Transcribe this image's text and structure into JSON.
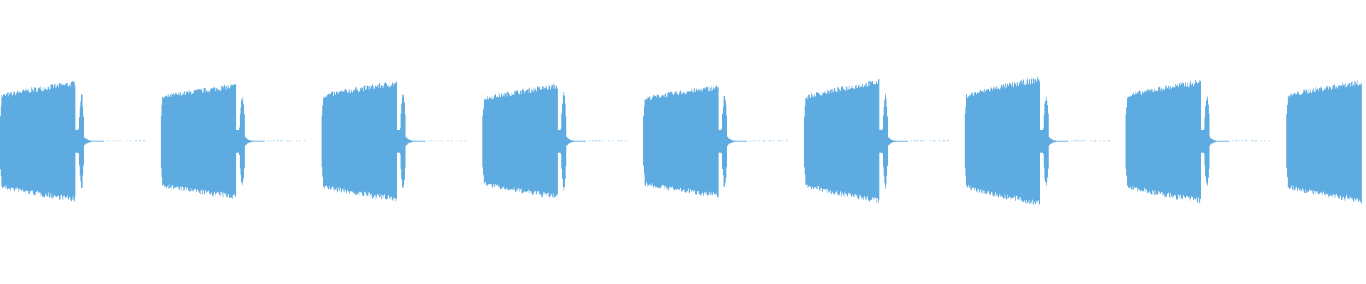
{
  "chart_data": {
    "type": "area",
    "title": "",
    "xlabel": "",
    "ylabel": "",
    "ylim": [
      -1,
      1
    ],
    "grid": false,
    "legend": "none",
    "waveform_color": "#5dabe1",
    "background_color": "#ffffff",
    "burst_count": 9,
    "bursts": [
      {
        "index": 1,
        "start_amplitude": 0.33,
        "peak_amplitude": 0.43,
        "has_tail_pulse": true
      },
      {
        "index": 2,
        "start_amplitude": 0.32,
        "peak_amplitude": 0.41,
        "has_tail_pulse": true
      },
      {
        "index": 3,
        "start_amplitude": 0.33,
        "peak_amplitude": 0.43,
        "has_tail_pulse": true
      },
      {
        "index": 4,
        "start_amplitude": 0.31,
        "peak_amplitude": 0.41,
        "has_tail_pulse": true
      },
      {
        "index": 5,
        "start_amplitude": 0.31,
        "peak_amplitude": 0.4,
        "has_tail_pulse": true
      },
      {
        "index": 6,
        "start_amplitude": 0.32,
        "peak_amplitude": 0.44,
        "has_tail_pulse": true
      },
      {
        "index": 7,
        "start_amplitude": 0.33,
        "peak_amplitude": 0.46,
        "has_tail_pulse": true
      },
      {
        "index": 8,
        "start_amplitude": 0.33,
        "peak_amplitude": 0.44,
        "has_tail_pulse": true
      },
      {
        "index": 9,
        "start_amplitude": 0.33,
        "peak_amplitude": 0.44,
        "has_tail_pulse": false
      }
    ]
  }
}
